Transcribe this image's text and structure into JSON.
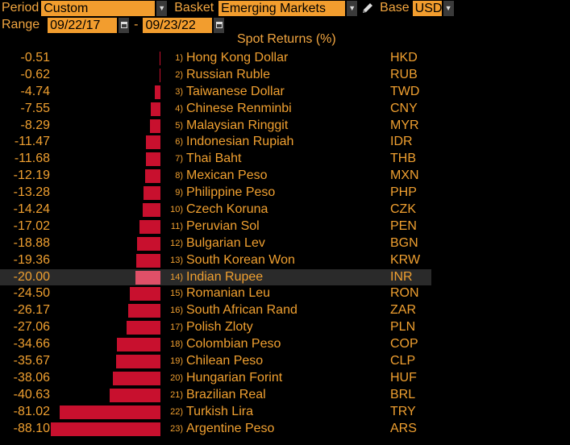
{
  "toolbar": {
    "period_label": "Period",
    "period_value": "Custom",
    "basket_label": "Basket",
    "basket_value": "Emerging Markets",
    "base_label": "Base",
    "base_value": "USD",
    "range_label": "Range",
    "range_start": "09/22/17",
    "range_sep": "-",
    "range_end": "09/23/22"
  },
  "header": {
    "title": "Spot Returns (%)"
  },
  "colors": {
    "bar": "#c8102e",
    "bar_selected": "#e05068",
    "field": "#f29d2e",
    "text": "#f0a030"
  },
  "chart_data": {
    "type": "bar",
    "title": "Spot Returns (%)",
    "selected_index": 13,
    "rows": [
      {
        "rank": "1)",
        "name": "Hong Kong Dollar",
        "code": "HKD",
        "value": -0.51,
        "label": "-0.51"
      },
      {
        "rank": "2)",
        "name": "Russian Ruble",
        "code": "RUB",
        "value": -0.62,
        "label": "-0.62"
      },
      {
        "rank": "3)",
        "name": "Taiwanese Dollar",
        "code": "TWD",
        "value": -4.74,
        "label": "-4.74"
      },
      {
        "rank": "4)",
        "name": "Chinese Renminbi",
        "code": "CNY",
        "value": -7.55,
        "label": "-7.55"
      },
      {
        "rank": "5)",
        "name": "Malaysian Ringgit",
        "code": "MYR",
        "value": -8.29,
        "label": "-8.29"
      },
      {
        "rank": "6)",
        "name": "Indonesian Rupiah",
        "code": "IDR",
        "value": -11.47,
        "label": "-11.47"
      },
      {
        "rank": "7)",
        "name": "Thai Baht",
        "code": "THB",
        "value": -11.68,
        "label": "-11.68"
      },
      {
        "rank": "8)",
        "name": "Mexican Peso",
        "code": "MXN",
        "value": -12.19,
        "label": "-12.19"
      },
      {
        "rank": "9)",
        "name": "Philippine Peso",
        "code": "PHP",
        "value": -13.28,
        "label": "-13.28"
      },
      {
        "rank": "10)",
        "name": "Czech Koruna",
        "code": "CZK",
        "value": -14.24,
        "label": "-14.24"
      },
      {
        "rank": "11)",
        "name": "Peruvian Sol",
        "code": "PEN",
        "value": -17.02,
        "label": "-17.02"
      },
      {
        "rank": "12)",
        "name": "Bulgarian Lev",
        "code": "BGN",
        "value": -18.88,
        "label": "-18.88"
      },
      {
        "rank": "13)",
        "name": "South Korean Won",
        "code": "KRW",
        "value": -19.36,
        "label": "-19.36"
      },
      {
        "rank": "14)",
        "name": "Indian Rupee",
        "code": "INR",
        "value": -20.0,
        "label": "-20.00"
      },
      {
        "rank": "15)",
        "name": "Romanian Leu",
        "code": "RON",
        "value": -24.5,
        "label": "-24.50"
      },
      {
        "rank": "16)",
        "name": "South African Rand",
        "code": "ZAR",
        "value": -26.17,
        "label": "-26.17"
      },
      {
        "rank": "17)",
        "name": "Polish Zloty",
        "code": "PLN",
        "value": -27.06,
        "label": "-27.06"
      },
      {
        "rank": "18)",
        "name": "Colombian Peso",
        "code": "COP",
        "value": -34.66,
        "label": "-34.66"
      },
      {
        "rank": "19)",
        "name": "Chilean Peso",
        "code": "CLP",
        "value": -35.67,
        "label": "-35.67"
      },
      {
        "rank": "20)",
        "name": "Hungarian Forint",
        "code": "HUF",
        "value": -38.06,
        "label": "-38.06"
      },
      {
        "rank": "21)",
        "name": "Brazilian Real",
        "code": "BRL",
        "value": -40.63,
        "label": "-40.63"
      },
      {
        "rank": "22)",
        "name": "Turkish Lira",
        "code": "TRY",
        "value": -81.02,
        "label": "-81.02"
      },
      {
        "rank": "23)",
        "name": "Argentine Peso",
        "code": "ARS",
        "value": -88.1,
        "label": "-88.10"
      }
    ]
  }
}
